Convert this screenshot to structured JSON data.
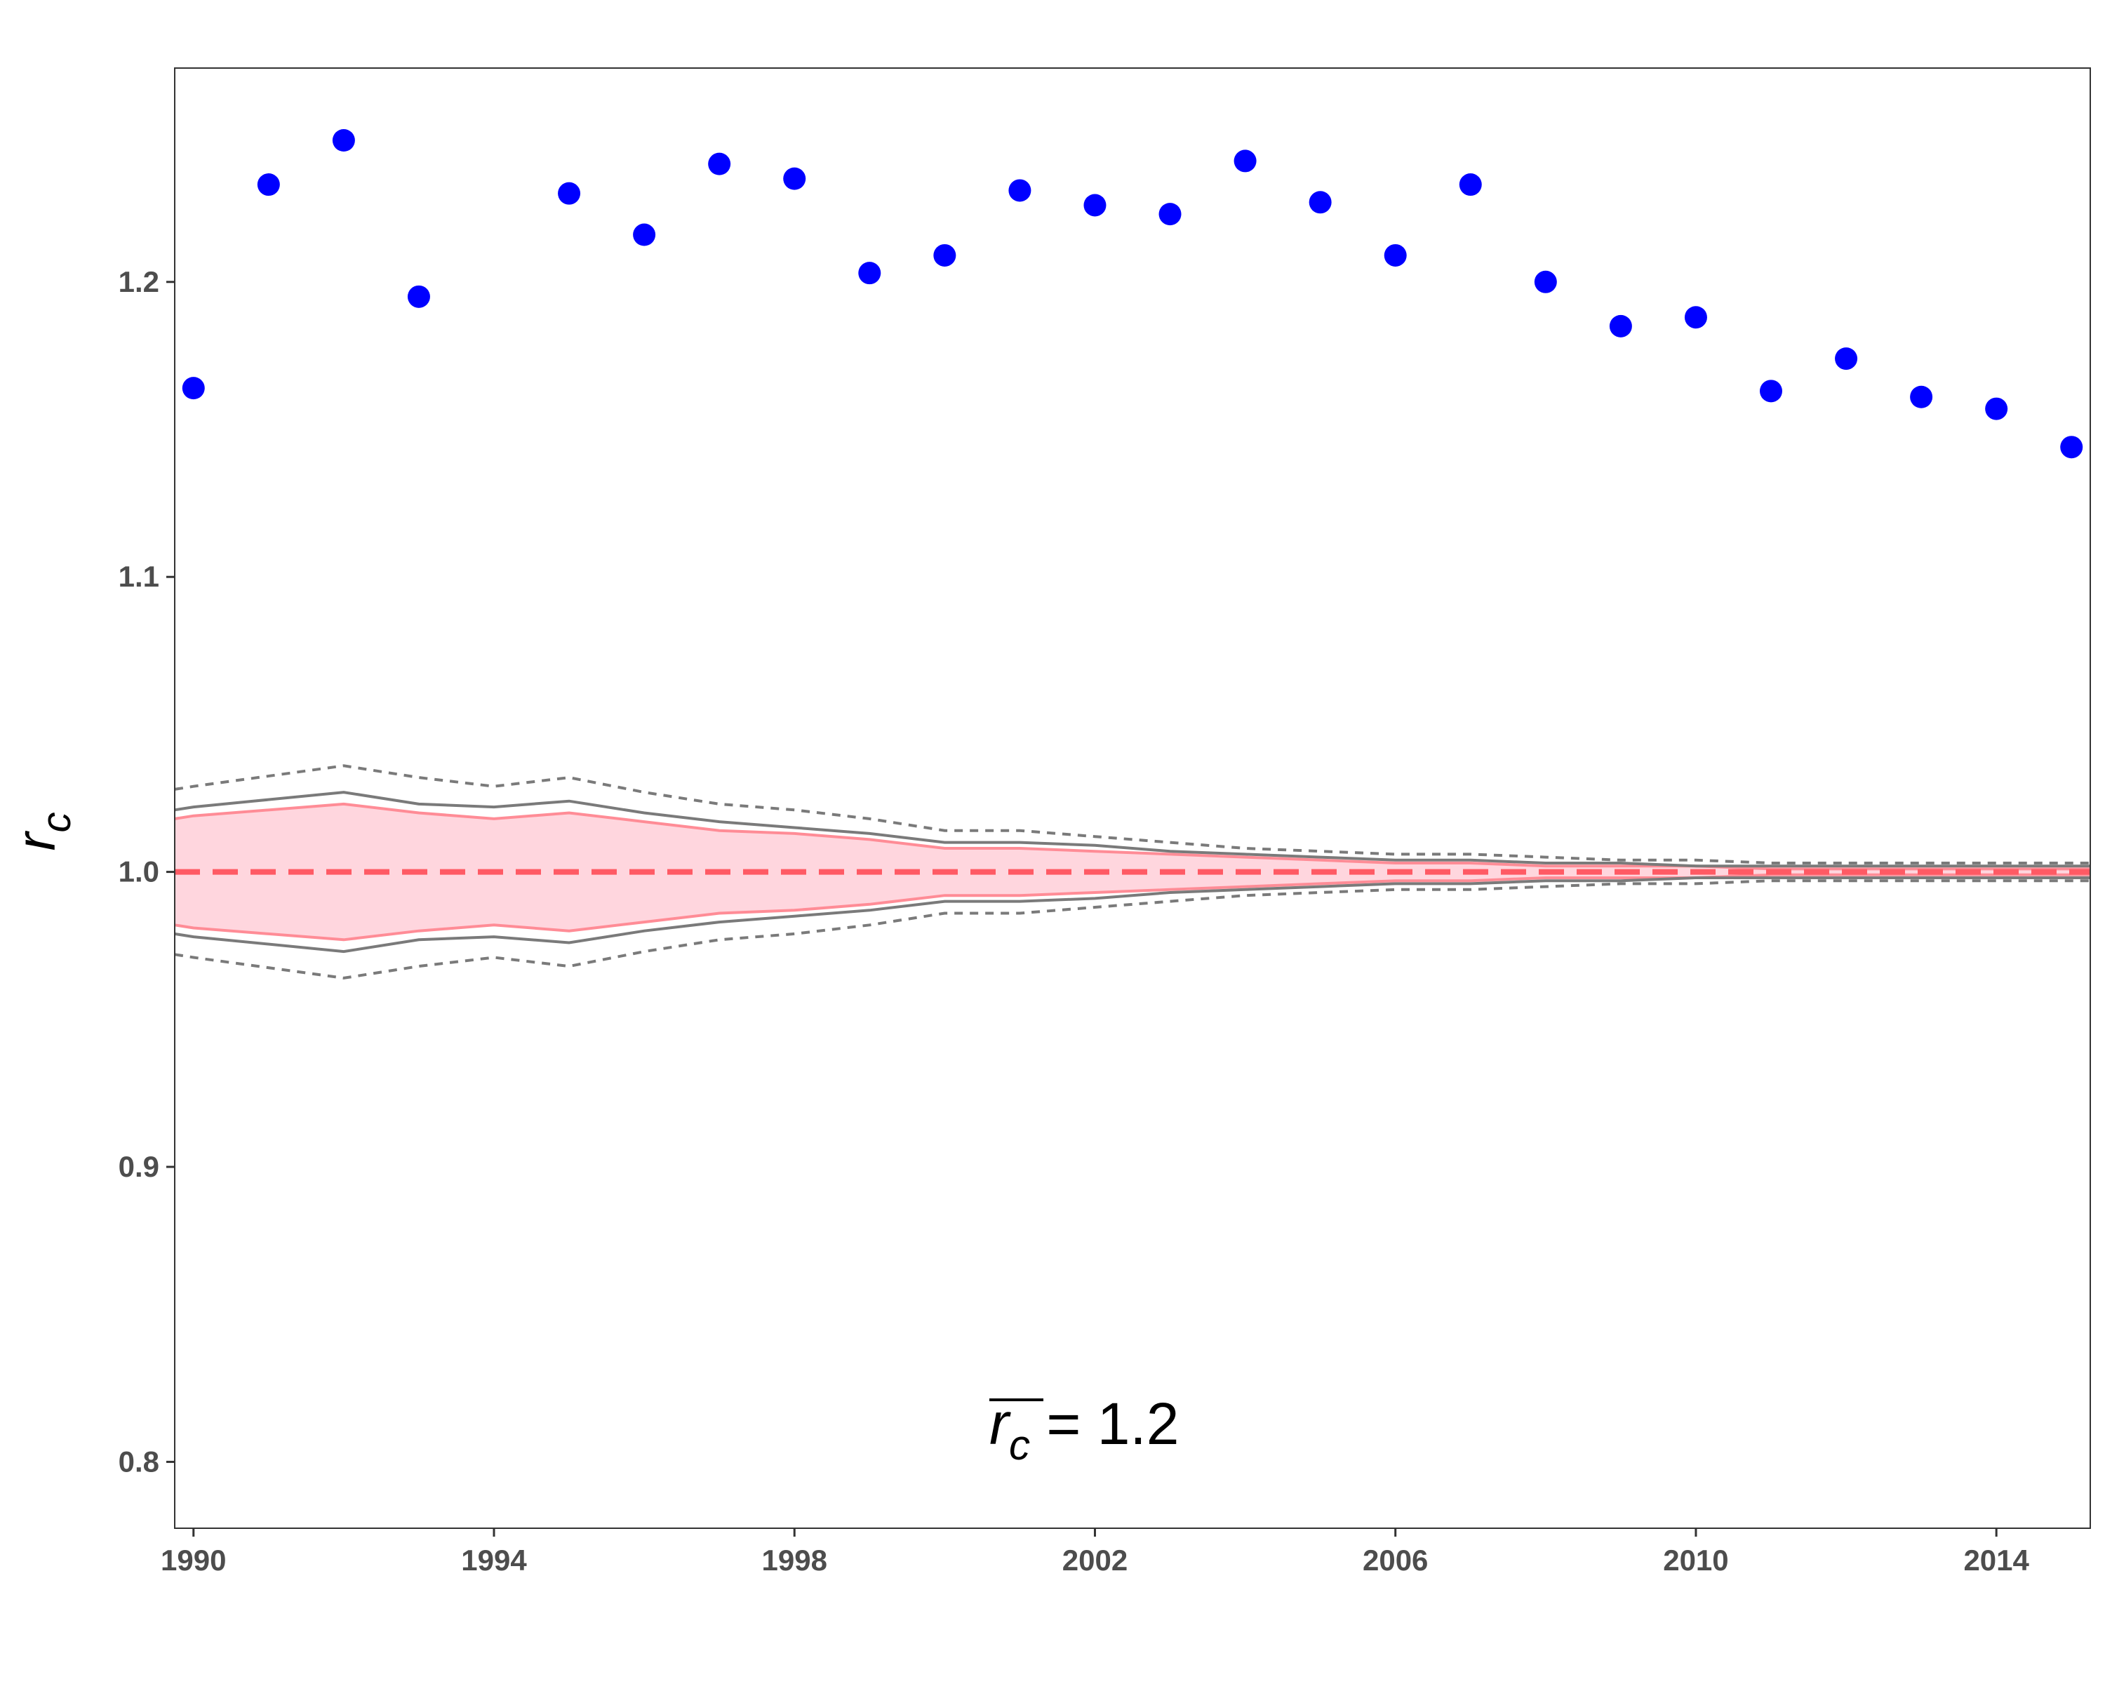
{
  "chart_data": {
    "type": "scatter",
    "ylabel": "r",
    "ylabel_sub": "c",
    "xlim": [
      1989.75,
      2015.25
    ],
    "ylim": [
      0.7775,
      1.2725
    ],
    "x_ticks": [
      1990,
      1994,
      1998,
      2002,
      2006,
      2010,
      2014
    ],
    "y_ticks": [
      0.8,
      0.9,
      1.0,
      1.1,
      1.2
    ],
    "y_tick_labels": [
      "0.8",
      "0.9",
      "1.0",
      "1.1",
      "1.2"
    ],
    "grid": false,
    "annotation": {
      "symbol": "r",
      "sub": "c",
      "text": " = 1.2"
    },
    "points": {
      "color": "#0000ff",
      "x": [
        1990,
        1991,
        1992,
        1993,
        1995,
        1996,
        1997,
        1998,
        1999,
        2000,
        2001,
        2002,
        2003,
        2004,
        2005,
        2006,
        2007,
        2008,
        2009,
        2010,
        2011,
        2012,
        2013,
        2014,
        2015
      ],
      "y": [
        1.164,
        1.233,
        1.248,
        1.195,
        1.23,
        1.216,
        1.24,
        1.235,
        1.203,
        1.209,
        1.231,
        1.226,
        1.223,
        1.241,
        1.227,
        1.209,
        1.233,
        1.2,
        1.185,
        1.188,
        1.163,
        1.174,
        1.161,
        1.157,
        1.144
      ]
    },
    "envelope": {
      "x": [
        1989.75,
        1990,
        1992,
        1993,
        1994,
        1995,
        1996,
        1997,
        1998,
        1999,
        2000,
        2001,
        2002,
        2003,
        2004,
        2005,
        2006,
        2007,
        2008,
        2009,
        2010,
        2011,
        2012,
        2013,
        2014,
        2015,
        2015.25
      ],
      "inner_upper": [
        1.018,
        1.019,
        1.023,
        1.02,
        1.018,
        1.02,
        1.017,
        1.014,
        1.013,
        1.011,
        1.008,
        1.008,
        1.007,
        1.006,
        1.005,
        1.004,
        1.003,
        1.003,
        1.002,
        1.002,
        1.002,
        1.001,
        1.001,
        1.001,
        1.001,
        1.001,
        1.001
      ],
      "inner_lower": [
        0.982,
        0.981,
        0.977,
        0.98,
        0.982,
        0.98,
        0.983,
        0.986,
        0.987,
        0.989,
        0.992,
        0.992,
        0.993,
        0.994,
        0.995,
        0.996,
        0.997,
        0.997,
        0.998,
        0.998,
        0.998,
        0.999,
        0.999,
        0.999,
        0.999,
        0.999,
        0.999
      ],
      "mid_upper": [
        1.021,
        1.022,
        1.027,
        1.023,
        1.022,
        1.024,
        1.02,
        1.017,
        1.015,
        1.013,
        1.01,
        1.01,
        1.009,
        1.007,
        1.006,
        1.005,
        1.004,
        1.004,
        1.003,
        1.003,
        1.002,
        1.002,
        1.002,
        1.002,
        1.002,
        1.002,
        1.002
      ],
      "mid_lower": [
        0.979,
        0.978,
        0.973,
        0.977,
        0.978,
        0.976,
        0.98,
        0.983,
        0.985,
        0.987,
        0.99,
        0.99,
        0.991,
        0.993,
        0.994,
        0.995,
        0.996,
        0.996,
        0.997,
        0.997,
        0.998,
        0.998,
        0.998,
        0.998,
        0.998,
        0.998,
        0.998
      ],
      "outer_upper": [
        1.028,
        1.029,
        1.036,
        1.032,
        1.029,
        1.032,
        1.027,
        1.023,
        1.021,
        1.018,
        1.014,
        1.014,
        1.012,
        1.01,
        1.008,
        1.007,
        1.006,
        1.006,
        1.005,
        1.004,
        1.004,
        1.003,
        1.003,
        1.003,
        1.003,
        1.003,
        1.003
      ],
      "outer_lower": [
        0.972,
        0.971,
        0.964,
        0.968,
        0.971,
        0.968,
        0.973,
        0.977,
        0.979,
        0.982,
        0.986,
        0.986,
        0.988,
        0.99,
        0.992,
        0.993,
        0.994,
        0.994,
        0.995,
        0.996,
        0.996,
        0.997,
        0.997,
        0.997,
        0.997,
        0.997,
        0.997
      ]
    },
    "reference_line": {
      "y": 1.0,
      "style": "dashed"
    },
    "colors": {
      "band_fill": "#ffd6de",
      "band_edge": "#ff8c96",
      "mid_line": "#7a7a7a",
      "outer_line": "#7a7a7a",
      "reference": "#ff5a64"
    }
  }
}
